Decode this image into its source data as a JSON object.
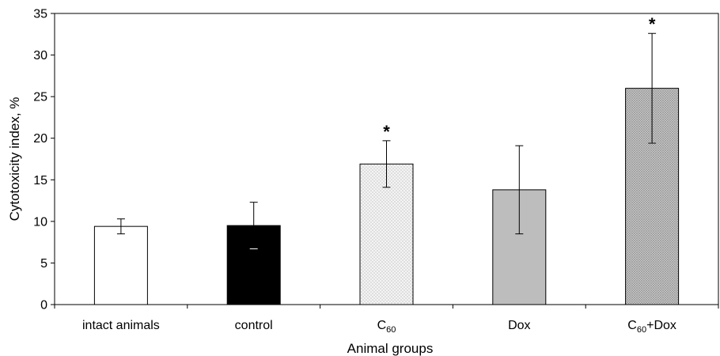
{
  "chart_data": {
    "type": "bar",
    "title": "",
    "xlabel": "Animal groups",
    "ylabel": "Cytotoxicity index, %",
    "ylim": [
      0,
      35
    ],
    "yticks": [
      0,
      5,
      10,
      15,
      20,
      25,
      30,
      35
    ],
    "grid": false,
    "legend": "none",
    "categories": [
      {
        "label": "intact animals",
        "sub": "",
        "suffix": ""
      },
      {
        "label": "control",
        "sub": "",
        "suffix": ""
      },
      {
        "label": "C",
        "sub": "60",
        "suffix": ""
      },
      {
        "label": "Dox",
        "sub": "",
        "suffix": ""
      },
      {
        "label": "C",
        "sub": "60",
        "suffix": "+Dox"
      }
    ],
    "values": [
      9.4,
      9.5,
      16.9,
      13.8,
      26.0
    ],
    "errors": [
      0.9,
      2.8,
      2.8,
      5.3,
      6.6
    ],
    "significance": [
      "",
      "",
      "*",
      "",
      "*"
    ],
    "colors": [
      "#ffffff",
      "#000000",
      "#f2f2f2",
      "#bdbdbd",
      "#bdbdbd"
    ],
    "patterns": [
      "none",
      "none",
      "sparse-dots",
      "none",
      "dense-dots"
    ]
  }
}
